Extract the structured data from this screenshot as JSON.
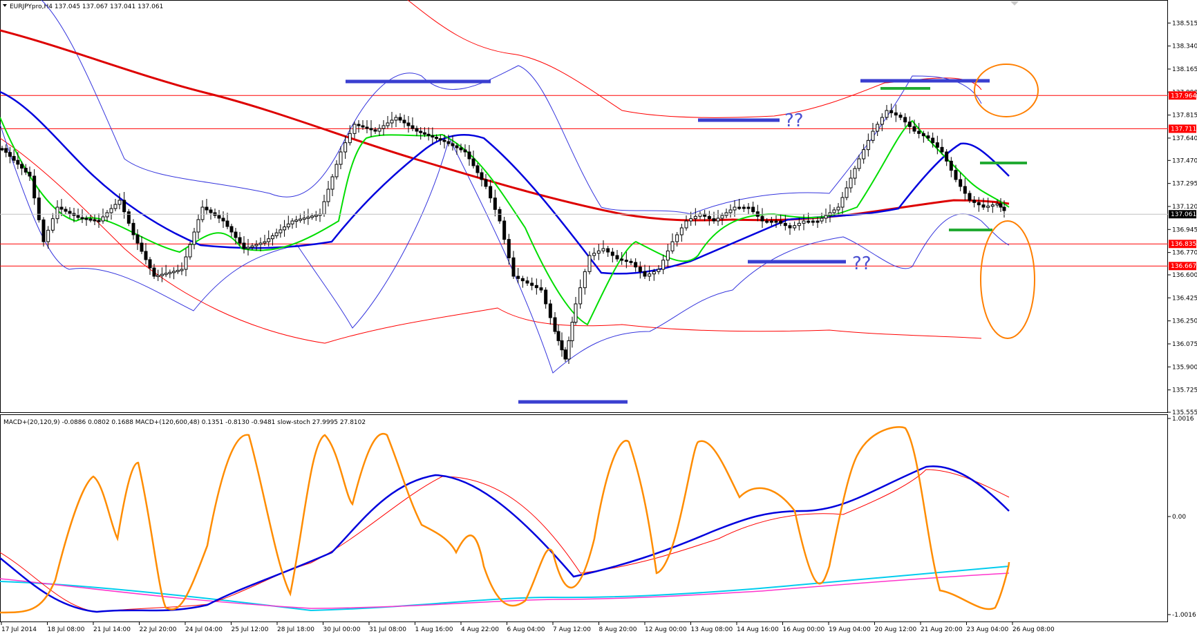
{
  "header": {
    "price_title": "EURJPYpro,H4  137.045 137.067 137.041 137.061",
    "indicator_title": "MACD+(20,120,9) -0.0886 0.0802 0.1688  MACD+(120,600,48) 0.1351 -0.8130 -0.9481  slow-stoch 27.9995 27.8102"
  },
  "chart_data": [
    {
      "type": "candlestick",
      "symbol": "EURJPYpro",
      "timeframe": "H4",
      "ohlc_last": {
        "open": 137.045,
        "high": 137.067,
        "low": 137.041,
        "close": 137.061
      },
      "ylim": [
        135.555,
        138.69
      ],
      "y_ticks": [
        138.515,
        138.34,
        138.165,
        137.99,
        137.815,
        137.64,
        137.47,
        137.295,
        137.12,
        136.945,
        136.77,
        136.6,
        136.425,
        136.25,
        136.075,
        135.9,
        135.725,
        135.555
      ],
      "y_tick_labels": [
        "138.515",
        "138.340",
        "138.165",
        "137.990",
        "137.815",
        "137.640",
        "137.470",
        "137.295",
        "137.120",
        "136.945",
        "136.770",
        "136.600",
        "136.425",
        "136.250",
        "136.075",
        "135.900",
        "135.725",
        "135.555"
      ],
      "x_tick_labels": [
        "17 Jul 2014",
        "18 Jul 08:00",
        "21 Jul 14:00",
        "22 Jul 20:00",
        "24 Jul 04:00",
        "25 Jul 12:00",
        "28 Jul 18:00",
        "30 Jul 00:00",
        "31 Jul 08:00",
        "1 Aug 16:00",
        "4 Aug 22:00",
        "6 Aug 04:00",
        "7 Aug 12:00",
        "8 Aug 20:00",
        "12 Aug 00:00",
        "13 Aug 08:00",
        "14 Aug 16:00",
        "16 Aug 00:00",
        "19 Aug 04:00",
        "20 Aug 12:00",
        "21 Aug 20:00",
        "23 Aug 04:00",
        "26 Aug 08:00"
      ],
      "horizontal_levels": [
        {
          "value": 137.964,
          "label": "137.964"
        },
        {
          "value": 137.711,
          "label": "137.711"
        },
        {
          "value": 136.835,
          "label": "136.835"
        },
        {
          "value": 136.667,
          "label": "136.667"
        }
      ],
      "current_price": {
        "value": 137.061,
        "label": "137.061"
      },
      "annotations": [
        "??",
        "??"
      ],
      "colors": {
        "level_line": "#ff0000",
        "ma_fast": "#00dd00",
        "ma_mid": "#0000dd",
        "ma_slow": "#dd0000",
        "bands_blue": "#3333dd",
        "bands_red": "#ff0000",
        "annotation_bar_blue": "#3a3fd0",
        "annotation_bar_green": "#22aa33",
        "ellipse": "#ff7f00"
      }
    },
    {
      "type": "line",
      "name": "oscillator",
      "ylim": [
        -1.0016,
        1.0016
      ],
      "y_tick_labels": [
        "1.0016",
        "0.00",
        "-1.0016"
      ],
      "y_ticks": [
        1.0016,
        0.0,
        -1.0016
      ],
      "colors": {
        "stoch_main": "#ff8c00",
        "stoch_signal": "#ff0000",
        "macd_fast": "#0000dd",
        "macd_fast_signal": "#ff0000",
        "macd_slow": "#00ccee",
        "macd_slow_signal": "#ff33cc"
      }
    }
  ]
}
